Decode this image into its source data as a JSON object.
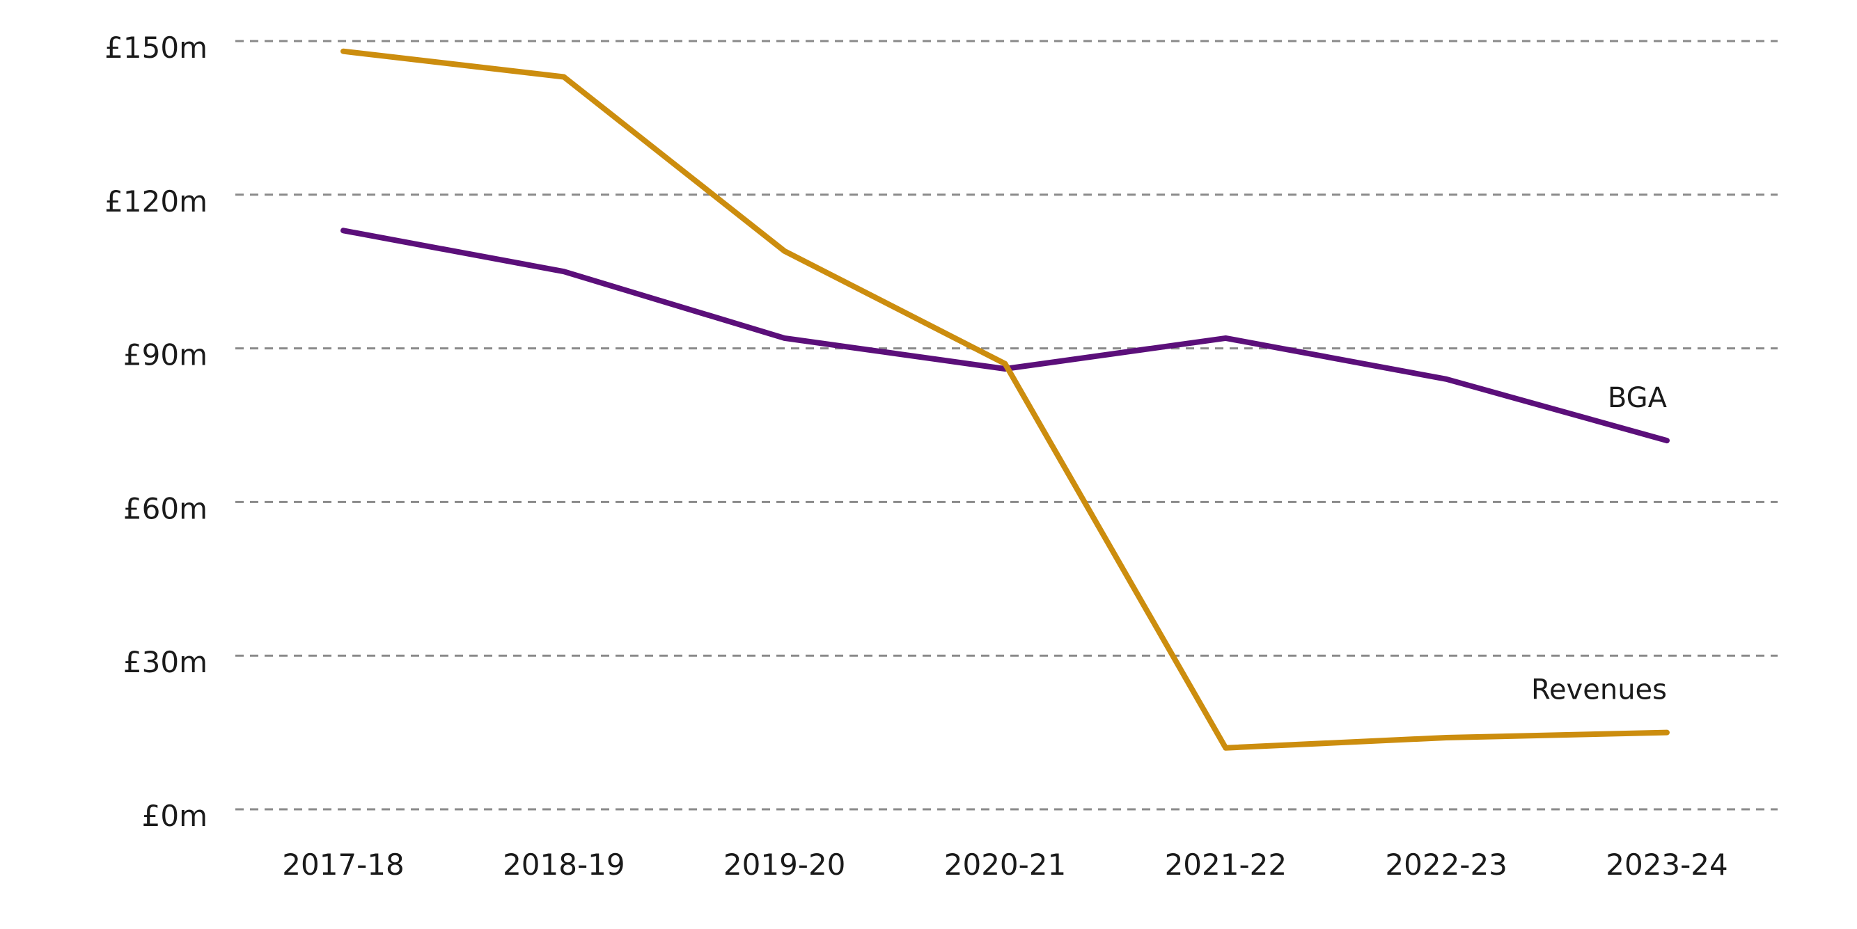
{
  "chart_data": {
    "type": "line",
    "title": "",
    "xlabel": "",
    "ylabel": "",
    "categories": [
      "2017-18",
      "2018-19",
      "2019-20",
      "2020-21",
      "2021-22",
      "2022-23",
      "2023-24"
    ],
    "y_ticks": [
      0,
      30,
      60,
      90,
      120,
      150
    ],
    "y_tick_labels": [
      "£0m",
      "£30m",
      "£60m",
      "£90m",
      "£120m",
      "£150m"
    ],
    "ylim": [
      0,
      150
    ],
    "grid": "horizontal dashed",
    "legend": "inline labels at line ends",
    "series": [
      {
        "name": "BGA",
        "values": [
          113,
          105,
          92,
          86,
          92,
          84,
          72
        ],
        "color": "#5b0f7a"
      },
      {
        "name": "Revenues",
        "values": [
          148,
          143,
          109,
          87,
          12,
          14,
          15
        ],
        "color": "#cc8d0e"
      }
    ]
  }
}
